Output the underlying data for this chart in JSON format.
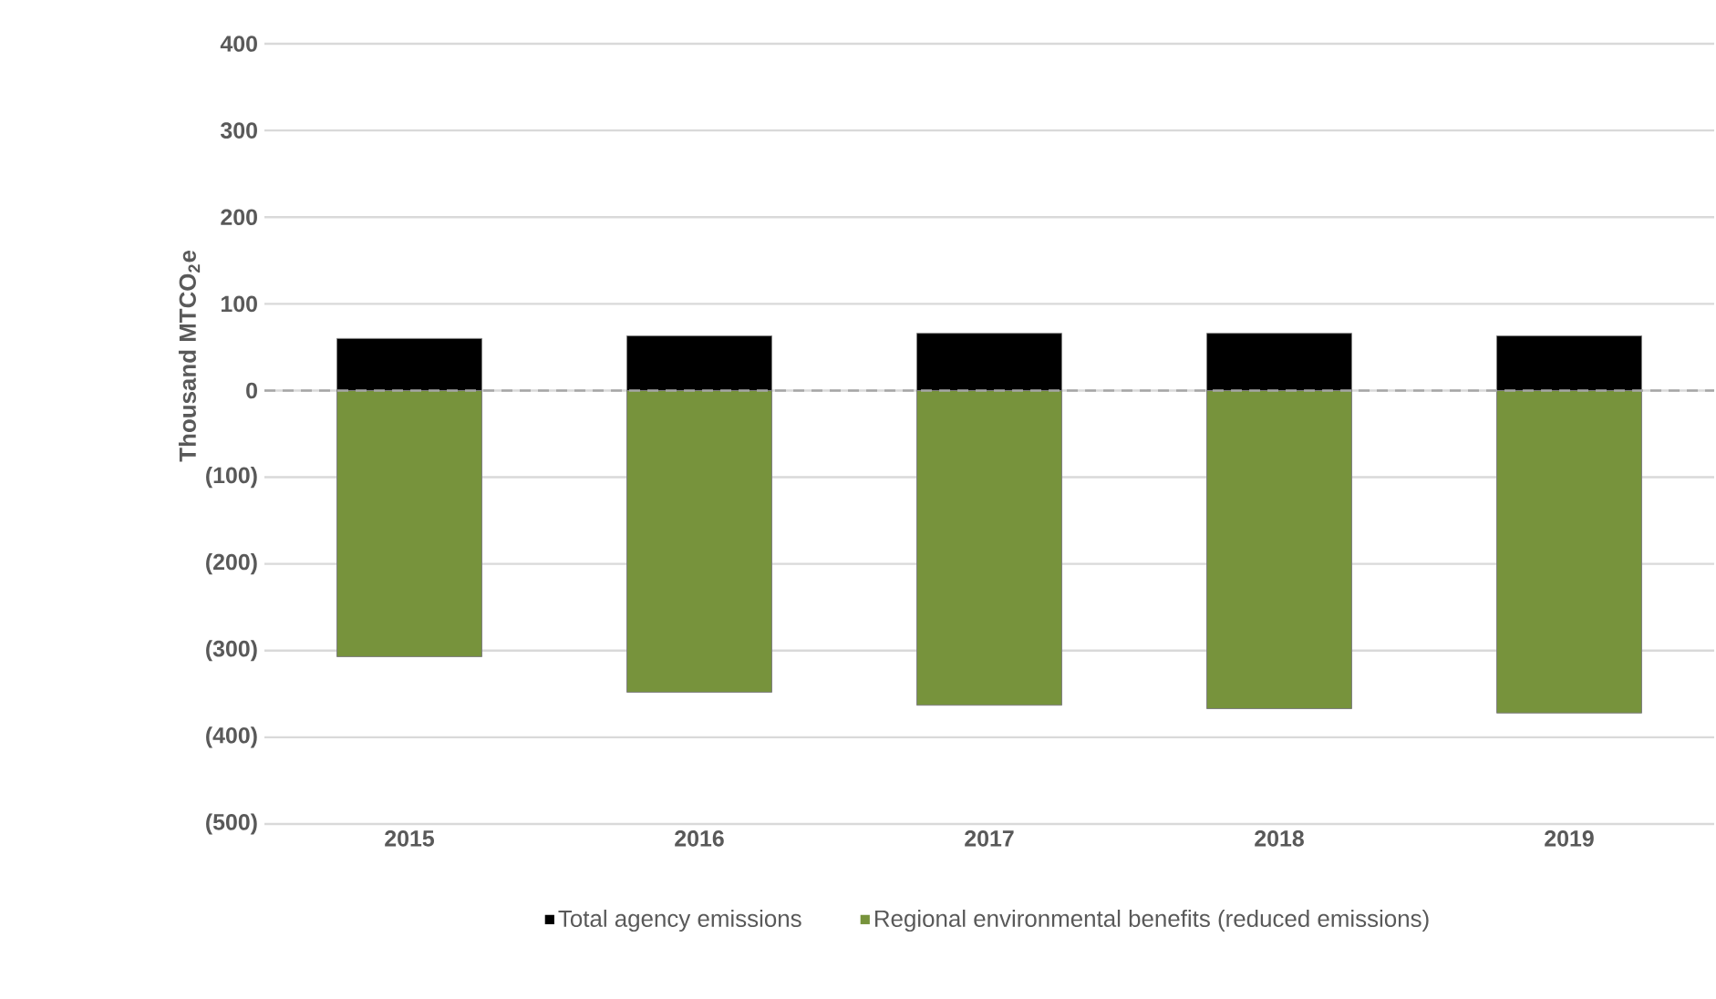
{
  "chart_data": {
    "type": "bar",
    "stacked": true,
    "ylabel": "Thousand MTCO$_{2}$e",
    "categories": [
      "2015",
      "2016",
      "2017",
      "2018",
      "2019"
    ],
    "series": [
      {
        "name": "Total agency emissions",
        "color": "#000000",
        "values": [
          60,
          63,
          66,
          66,
          63
        ]
      },
      {
        "name": "Regional environmental benefits (reduced emissions)",
        "color": "#77933c",
        "values": [
          -307,
          -348,
          -363,
          -367,
          -372
        ]
      }
    ],
    "ylim": [
      -500,
      400
    ],
    "yticks": [
      400,
      300,
      200,
      100,
      0,
      {
        "value": -100,
        "label": "(100)"
      },
      {
        "value": -200,
        "label": "(200)"
      },
      {
        "value": -300,
        "label": "(300)"
      },
      {
        "value": -400,
        "label": "(400)"
      },
      {
        "value": -500,
        "label": "(500)"
      }
    ],
    "grid": "y",
    "legend": "bottom",
    "ref_lines": [
      {
        "axis": "y",
        "value": 0,
        "color": "#a6a6a6",
        "line_style": "dashed"
      }
    ]
  }
}
